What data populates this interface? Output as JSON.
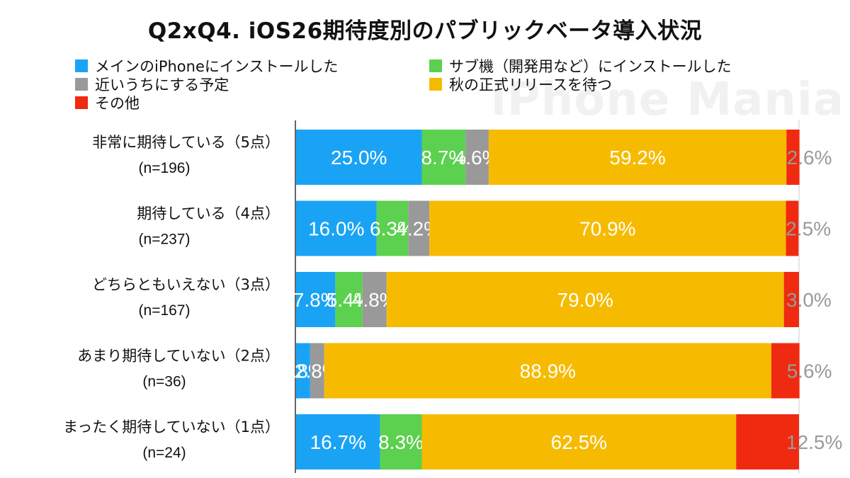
{
  "watermark": "iPhone Mania",
  "chart_data": {
    "type": "bar",
    "orientation": "horizontal",
    "stacked": true,
    "percent": true,
    "title": "Q2xQ4. iOS26期待度別のパブリックベータ導入状況",
    "categories": [
      {
        "label": "非常に期待している（5点）",
        "n": "(n=196)"
      },
      {
        "label": "期待している（4点）",
        "n": "(n=237)"
      },
      {
        "label": "どちらともいえない（3点）",
        "n": "(n=167)"
      },
      {
        "label": "あまり期待していない（2点）",
        "n": "(n=36)"
      },
      {
        "label": "まったく期待していない（1点）",
        "n": "(n=24)"
      }
    ],
    "series": [
      {
        "name": "メインのiPhoneにインストールした",
        "color": "#1aa3f5",
        "values": [
          25.0,
          16.0,
          7.8,
          2.8,
          16.7
        ]
      },
      {
        "name": "サブ機（開発用など）にインストールした",
        "color": "#5cd04f",
        "values": [
          8.7,
          6.3,
          5.4,
          0,
          8.3
        ]
      },
      {
        "name": "近いうちにする予定",
        "color": "#999999",
        "values": [
          4.6,
          4.2,
          4.8,
          2.8,
          0
        ]
      },
      {
        "name": "秋の正式リリースを待つ",
        "color": "#f6bb00",
        "values": [
          59.2,
          70.9,
          79.0,
          88.9,
          62.5
        ]
      },
      {
        "name": "その他",
        "color": "#f02a10",
        "values": [
          2.6,
          2.5,
          3.0,
          5.6,
          12.5
        ]
      }
    ],
    "legend_position": "top",
    "grid": false
  }
}
